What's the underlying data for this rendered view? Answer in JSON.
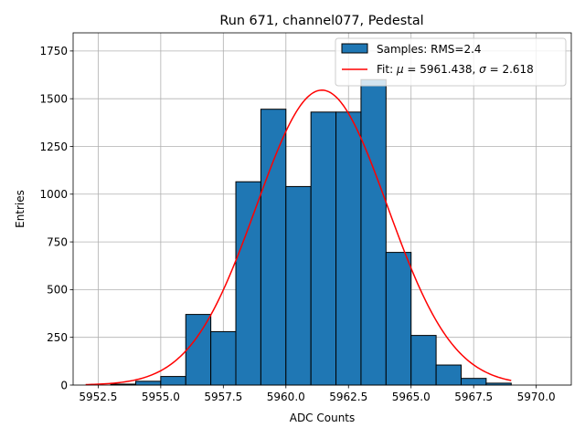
{
  "chart_data": {
    "type": "histogram",
    "title": "Run 671, channel077, Pedestal",
    "xlabel": "ADC Counts",
    "ylabel": "Entries",
    "xlim": [
      5951.5,
      5971.4
    ],
    "ylim": [
      0,
      1845
    ],
    "xticks": [
      5952.5,
      5955.0,
      5957.5,
      5960.0,
      5962.5,
      5965.0,
      5967.5,
      5970.0
    ],
    "xtick_labels": [
      "5952.5",
      "5955.0",
      "5957.5",
      "5960.0",
      "5962.5",
      "5965.0",
      "5967.5",
      "5970.0"
    ],
    "yticks": [
      0,
      250,
      500,
      750,
      1000,
      1250,
      1500,
      1750
    ],
    "ytick_labels": [
      "0",
      "250",
      "500",
      "750",
      "1000",
      "1250",
      "1500",
      "1750"
    ],
    "grid": true,
    "legend_position": "top-right",
    "bar_color": "#1f77b4",
    "fit_color": "#ff0000",
    "bins": [
      {
        "left": 5953,
        "right": 5954,
        "value": 5
      },
      {
        "left": 5954,
        "right": 5955,
        "value": 20
      },
      {
        "left": 5955,
        "right": 5956,
        "value": 45
      },
      {
        "left": 5956,
        "right": 5957,
        "value": 370
      },
      {
        "left": 5957,
        "right": 5958,
        "value": 280
      },
      {
        "left": 5958,
        "right": 5959,
        "value": 1065
      },
      {
        "left": 5959,
        "right": 5960,
        "value": 1445
      },
      {
        "left": 5960,
        "right": 5961,
        "value": 1040
      },
      {
        "left": 5961,
        "right": 5962,
        "value": 1430
      },
      {
        "left": 5962,
        "right": 5963,
        "value": 1430
      },
      {
        "left": 5963,
        "right": 5964,
        "value": 1600
      },
      {
        "left": 5964,
        "right": 5965,
        "value": 695
      },
      {
        "left": 5965,
        "right": 5966,
        "value": 260
      },
      {
        "left": 5966,
        "right": 5967,
        "value": 105
      },
      {
        "left": 5967,
        "right": 5968,
        "value": 35
      },
      {
        "left": 5968,
        "right": 5969,
        "value": 10
      }
    ],
    "fit": {
      "mu": 5961.438,
      "sigma": 2.618,
      "amplitude": 1545,
      "x_range": [
        5952.0,
        5969.0
      ]
    },
    "legend": {
      "samples_label": "Samples: RMS=2.4",
      "fit_prefix": "Fit: ",
      "mu_symbol": "μ",
      "mu_text": " = 5961.438, ",
      "sigma_symbol": "σ",
      "sigma_text": " = 2.618"
    }
  }
}
